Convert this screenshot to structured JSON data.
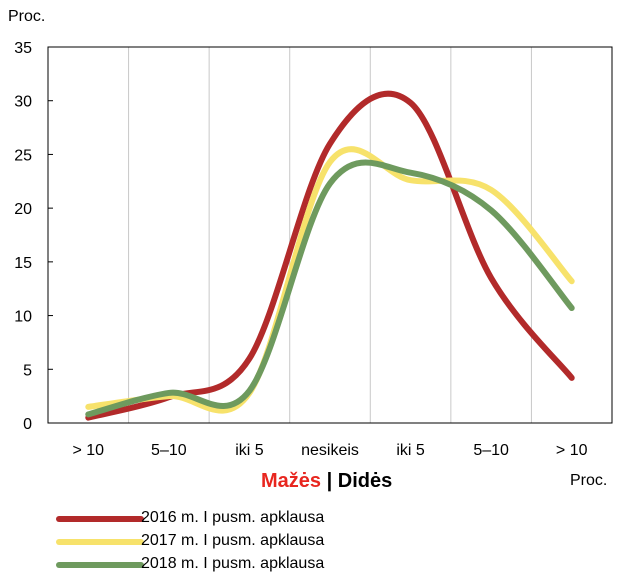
{
  "chart_data": {
    "type": "line",
    "ylabel": "Proc.",
    "x_unit": "Proc.",
    "ylim": [
      0,
      35
    ],
    "yticks": [
      0,
      5,
      10,
      15,
      20,
      25,
      30,
      35
    ],
    "categories": [
      "> 10",
      "5–10",
      "iki 5",
      "nesikeis",
      "iki 5",
      "5–10",
      "> 10"
    ],
    "direction_labels": {
      "decrease": "Mažės",
      "separator": " | ",
      "increase": "Didės"
    },
    "series": [
      {
        "name": "2016 m. I pusm. apklausa",
        "color": "#b22a2a",
        "values": [
          0.5,
          2.4,
          6.0,
          26.0,
          29.8,
          13.5,
          4.2
        ]
      },
      {
        "name": "2017 m. I pusm. apklausa",
        "color": "#f7e26b",
        "values": [
          1.5,
          2.5,
          2.8,
          24.3,
          22.6,
          21.7,
          13.2
        ]
      },
      {
        "name": "2018 m. I pusm. apklausa",
        "color": "#6e9a5e",
        "values": [
          0.8,
          2.8,
          3.0,
          22.3,
          23.3,
          19.8,
          10.7
        ]
      }
    ],
    "grid": "vertical",
    "legend_position": "bottom-left"
  }
}
